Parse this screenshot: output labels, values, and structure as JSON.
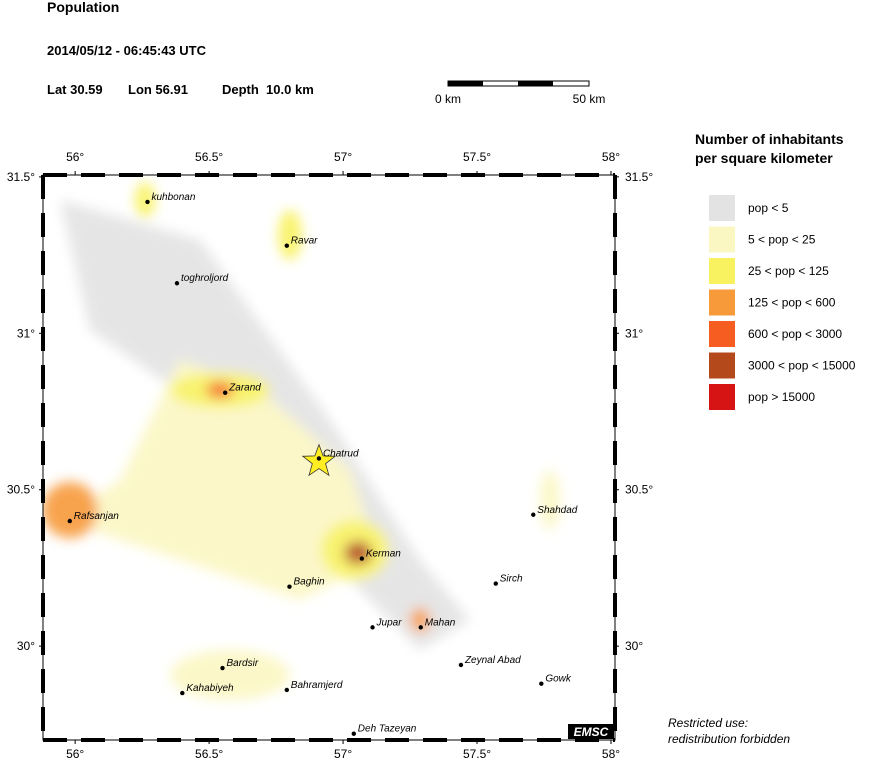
{
  "title": "Population",
  "datetime": "2014/05/12 - 06:45:43 UTC",
  "location": {
    "lat": "Lat 30.59",
    "lon": "Lon 56.91",
    "depth": "Depth  10.0 km"
  },
  "scale_bar": {
    "start": "0 km",
    "end": "50 km"
  },
  "map": {
    "xlim": [
      55.88,
      58.015
    ],
    "ylim": [
      29.7,
      31.506
    ],
    "xticks": [
      {
        "value": 56,
        "label": "56°"
      },
      {
        "value": 56.5,
        "label": "56.5°"
      },
      {
        "value": 57,
        "label": "57°"
      },
      {
        "value": 57.5,
        "label": "57.5°"
      },
      {
        "value": 58,
        "label": "58°"
      }
    ],
    "yticks": [
      {
        "value": 30,
        "label": "30°"
      },
      {
        "value": 30.5,
        "label": "30.5°"
      },
      {
        "value": 31,
        "label": "31°"
      },
      {
        "value": 31.5,
        "label": "31.5°"
      }
    ],
    "epicenter": {
      "lon": 56.91,
      "lat": 30.59,
      "color": "#ffee22"
    },
    "cities": [
      {
        "name": "kuhbonan",
        "lon": 56.27,
        "lat": 31.42
      },
      {
        "name": "Ravar",
        "lon": 56.79,
        "lat": 31.28
      },
      {
        "name": "toghroljord",
        "lon": 56.38,
        "lat": 31.16
      },
      {
        "name": "Zarand",
        "lon": 56.56,
        "lat": 30.81
      },
      {
        "name": "Chatrud",
        "lon": 56.91,
        "lat": 30.6
      },
      {
        "name": "Rafsanjan",
        "lon": 55.98,
        "lat": 30.4
      },
      {
        "name": "Kerman",
        "lon": 57.07,
        "lat": 30.28
      },
      {
        "name": "Shahdad",
        "lon": 57.71,
        "lat": 30.42
      },
      {
        "name": "Sirch",
        "lon": 57.57,
        "lat": 30.2
      },
      {
        "name": "Baghin",
        "lon": 56.8,
        "lat": 30.19
      },
      {
        "name": "Jupar",
        "lon": 57.11,
        "lat": 30.06
      },
      {
        "name": "Mahan",
        "lon": 57.29,
        "lat": 30.06
      },
      {
        "name": "Zeynal Abad",
        "lon": 57.44,
        "lat": 29.94
      },
      {
        "name": "Bardsir",
        "lon": 56.55,
        "lat": 29.93
      },
      {
        "name": "Gowk",
        "lon": 57.74,
        "lat": 29.88
      },
      {
        "name": "Kahabiyeh",
        "lon": 56.4,
        "lat": 29.85
      },
      {
        "name": "Bahramjerd",
        "lon": 56.79,
        "lat": 29.86
      },
      {
        "name": "Deh Tazeyan",
        "lon": 57.04,
        "lat": 29.72
      }
    ],
    "badge": "EMSC"
  },
  "legend": {
    "title": [
      "Number of inhabitants",
      "per square kilometer"
    ],
    "items": [
      {
        "label": "pop < 5",
        "color": "#e3e3e3"
      },
      {
        "label": "5 < pop < 25",
        "color": "#fbf7c3"
      },
      {
        "label": "25 < pop < 125",
        "color": "#f8f261"
      },
      {
        "label": "125 < pop < 600",
        "color": "#f79a3a"
      },
      {
        "label": "600 < pop < 3000",
        "color": "#f55e20"
      },
      {
        "label": "3000 < pop < 15000",
        "color": "#b4491c"
      },
      {
        "label": "pop > 15000",
        "color": "#d61414"
      }
    ]
  },
  "notice": [
    "Restricted use:",
    "redistribution forbidden"
  ]
}
